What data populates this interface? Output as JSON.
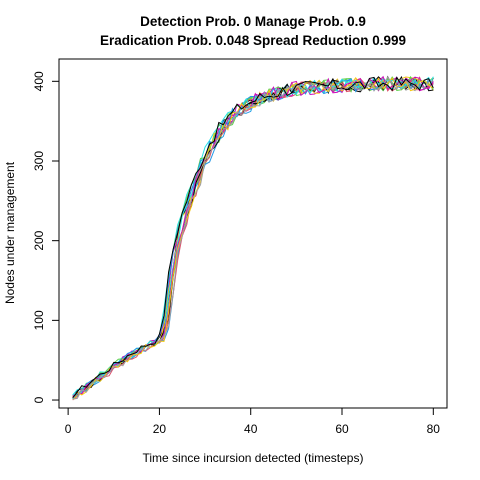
{
  "chart_data": {
    "type": "line",
    "title_lines": [
      "Detection Prob. 0 Manage Prob. 0.9",
      "Eradication Prob. 0.048 Spread Reduction 0.999"
    ],
    "xlabel": "Time since incursion detected (timesteps)",
    "ylabel": "Nodes under management",
    "xlim": [
      -2,
      83
    ],
    "ylim": [
      -10,
      428
    ],
    "x_ticks": [
      0,
      20,
      40,
      60,
      80
    ],
    "y_ticks": [
      0,
      100,
      200,
      300,
      400
    ],
    "grid": false,
    "legend": "none",
    "base_curve": {
      "x": [
        1,
        2,
        4,
        6,
        8,
        10,
        12,
        14,
        16,
        18,
        20,
        21,
        22,
        23,
        24,
        25,
        26,
        27,
        28,
        29,
        30,
        31,
        32,
        33,
        34,
        35,
        36,
        37,
        38,
        39,
        40,
        42,
        44,
        46,
        48,
        50,
        55,
        60,
        65,
        70,
        75,
        80
      ],
      "y": [
        3,
        8,
        16,
        25,
        33,
        41,
        49,
        57,
        64,
        70,
        75,
        82,
        125,
        170,
        200,
        222,
        240,
        257,
        272,
        288,
        303,
        316,
        326,
        335,
        343,
        350,
        356,
        362,
        366,
        370,
        373,
        378,
        382,
        386,
        389,
        391,
        393,
        395,
        396,
        397,
        397,
        397
      ]
    },
    "series": [
      {
        "color": "#000000",
        "seed": 1
      },
      {
        "color": "#df536b",
        "seed": 2
      },
      {
        "color": "#61d04f",
        "seed": 3
      },
      {
        "color": "#2297e6",
        "seed": 4
      },
      {
        "color": "#28e2e5",
        "seed": 5
      },
      {
        "color": "#cd0bbc",
        "seed": 6
      },
      {
        "color": "#f5c710",
        "seed": 7
      },
      {
        "color": "#9e9e9e",
        "seed": 8
      },
      {
        "color": "#000000",
        "seed": 9
      },
      {
        "color": "#df536b",
        "seed": 10
      },
      {
        "color": "#61d04f",
        "seed": 11
      },
      {
        "color": "#2297e6",
        "seed": 12
      },
      {
        "color": "#28e2e5",
        "seed": 13
      },
      {
        "color": "#cd0bbc",
        "seed": 14
      },
      {
        "color": "#f5c710",
        "seed": 15
      },
      {
        "color": "#9e9e9e",
        "seed": 16
      },
      {
        "color": "#000000",
        "seed": 17
      }
    ]
  }
}
